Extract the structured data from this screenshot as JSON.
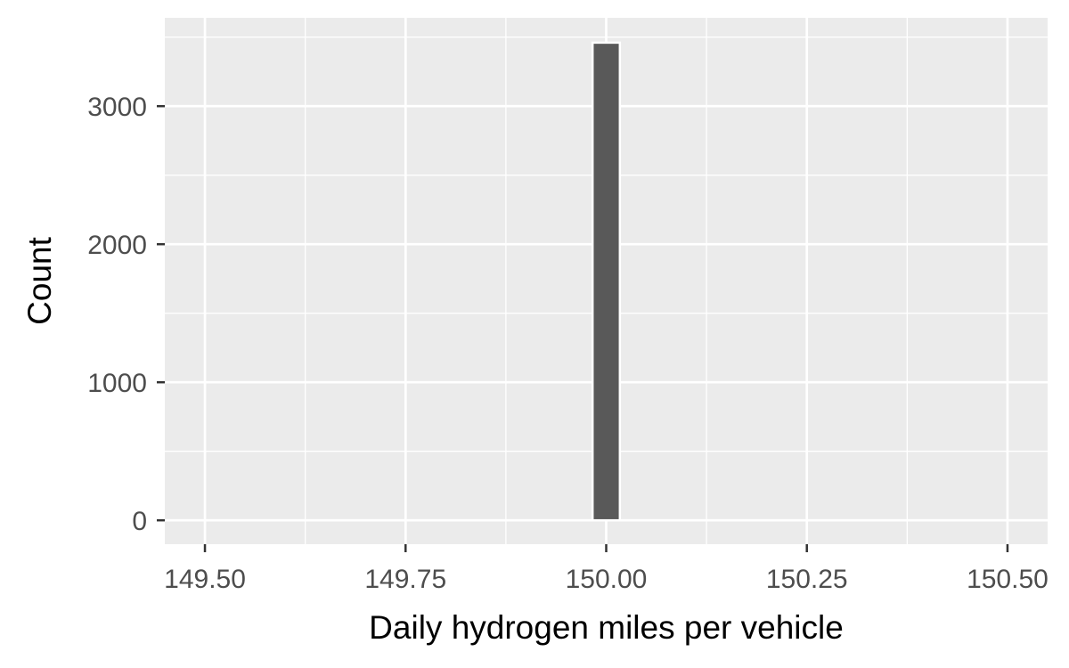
{
  "chart_data": {
    "type": "bar",
    "title": "",
    "xlabel": "Daily hydrogen miles per vehicle",
    "ylabel": "Count",
    "x_ticks": [
      "149.50",
      "149.75",
      "150.00",
      "150.25",
      "150.50"
    ],
    "x_tick_values": [
      149.5,
      149.75,
      150.0,
      150.25,
      150.5
    ],
    "y_ticks": [
      "0",
      "1000",
      "2000",
      "3000"
    ],
    "y_tick_values": [
      0,
      1000,
      2000,
      3000
    ],
    "xlim": [
      149.45,
      150.55
    ],
    "ylim": [
      -173,
      3640
    ],
    "bins": [
      {
        "x_start": 149.983,
        "x_end": 150.017,
        "count": 3460
      }
    ],
    "grid": true,
    "legend": "none",
    "colors": {
      "panel": "#ebebeb",
      "grid": "#ffffff",
      "bar_fill": "#595959",
      "bar_outline": "#ffffff",
      "tick_text": "#4d4d4d",
      "title_text": "#000000"
    }
  }
}
